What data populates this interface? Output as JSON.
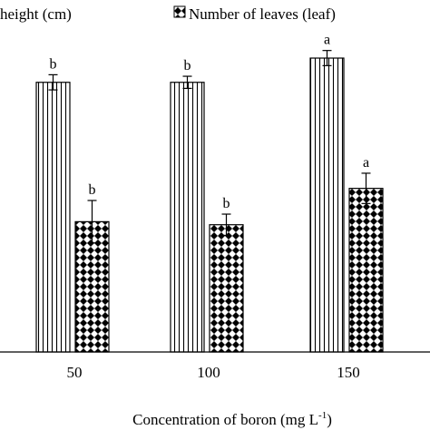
{
  "chart_data": {
    "type": "bar",
    "xlabel": "Concentration of boron (mg L",
    "xlabel_sup": "-1",
    "xlabel_end": ")",
    "categories": [
      "50",
      "100",
      "150"
    ],
    "ylim": [
      0,
      100
    ],
    "grid": false,
    "legend_position": "top",
    "series": [
      {
        "name": "height (cm)",
        "pattern": "vertical-stripes",
        "values": [
          89,
          89,
          97
        ],
        "errors": [
          2.5,
          2,
          2.5
        ],
        "letters": [
          "b",
          "b",
          "a"
        ]
      },
      {
        "name": "Number of leaves (leaf)",
        "pattern": "checker",
        "values": [
          43,
          42,
          54
        ],
        "errors": [
          7,
          3.5,
          5
        ],
        "letters": [
          "b",
          "b",
          "a"
        ]
      }
    ]
  }
}
